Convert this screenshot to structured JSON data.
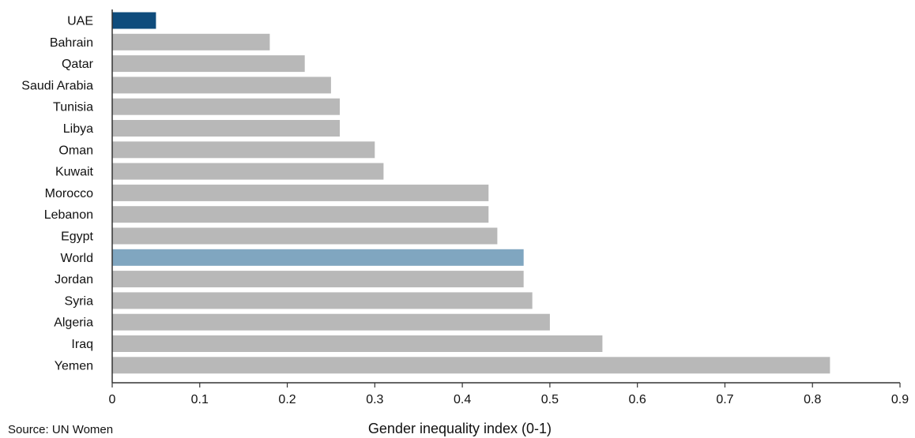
{
  "chart_data": {
    "type": "bar",
    "orientation": "horizontal",
    "categories": [
      "UAE",
      "Bahrain",
      "Qatar",
      "Saudi Arabia",
      "Tunisia",
      "Libya",
      "Oman",
      "Kuwait",
      "Morocco",
      "Lebanon",
      "Egypt",
      "World",
      "Jordan",
      "Syria",
      "Algeria",
      "Iraq",
      "Yemen"
    ],
    "values": [
      0.05,
      0.18,
      0.22,
      0.25,
      0.26,
      0.26,
      0.3,
      0.31,
      0.43,
      0.43,
      0.44,
      0.47,
      0.47,
      0.48,
      0.5,
      0.56,
      0.82
    ],
    "xlabel": "Gender inequality index (0-1)",
    "ylabel": "",
    "xlim": [
      0,
      0.9
    ],
    "xticks": [
      "0",
      "0.1",
      "0.2",
      "0.3",
      "0.4",
      "0.5",
      "0.6",
      "0.7",
      "0.8",
      "0.9"
    ],
    "grid": false,
    "source": "Source: UN Women",
    "colors": {
      "default": "#b8b8b8",
      "UAE": "#0f4c7c",
      "World": "#80a6c0",
      "axis": "#333333"
    }
  }
}
